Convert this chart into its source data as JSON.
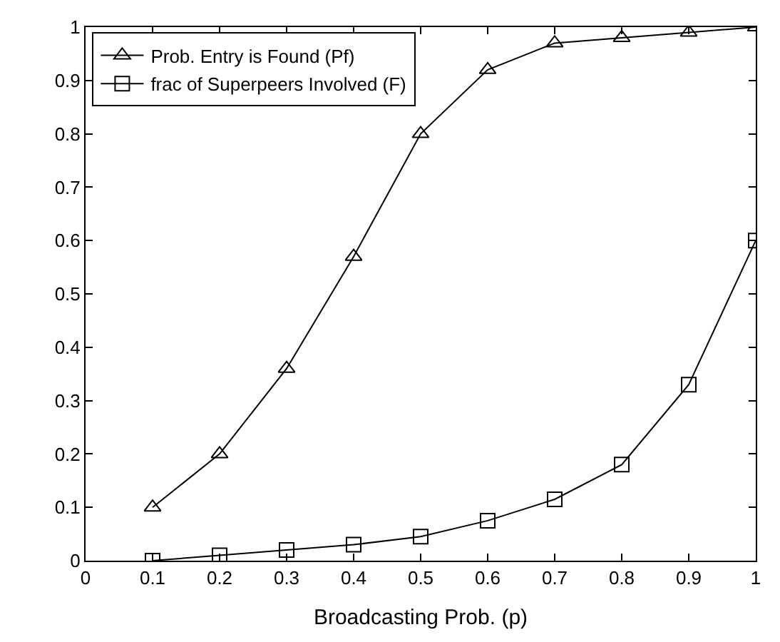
{
  "chart_data": {
    "type": "line",
    "xlabel": "Broadcasting Prob. (p)",
    "x": [
      0.1,
      0.2,
      0.3,
      0.4,
      0.5,
      0.6,
      0.7,
      0.8,
      0.9,
      1.0
    ],
    "series": [
      {
        "name": "Prob. Entry is Found (Pf)",
        "color": "#000000",
        "marker": "triangle",
        "values": [
          0.1,
          0.2,
          0.36,
          0.57,
          0.8,
          0.92,
          0.97,
          0.98,
          0.99,
          1.0
        ]
      },
      {
        "name": "frac of Superpeers Involved (F)",
        "color": "#000000",
        "marker": "square",
        "values": [
          0.0,
          0.01,
          0.02,
          0.03,
          0.045,
          0.075,
          0.115,
          0.18,
          0.33,
          0.6
        ]
      }
    ],
    "xlim": [
      0,
      1
    ],
    "xticks": [
      0,
      0.1,
      0.2,
      0.3,
      0.4,
      0.5,
      0.6,
      0.7,
      0.8,
      0.9,
      1
    ],
    "ylim": [
      0,
      1
    ],
    "yticks": [
      0,
      0.1,
      0.2,
      0.3,
      0.4,
      0.5,
      0.6,
      0.7,
      0.8,
      0.9,
      1
    ],
    "legend": "top left",
    "line_style": "solid"
  }
}
